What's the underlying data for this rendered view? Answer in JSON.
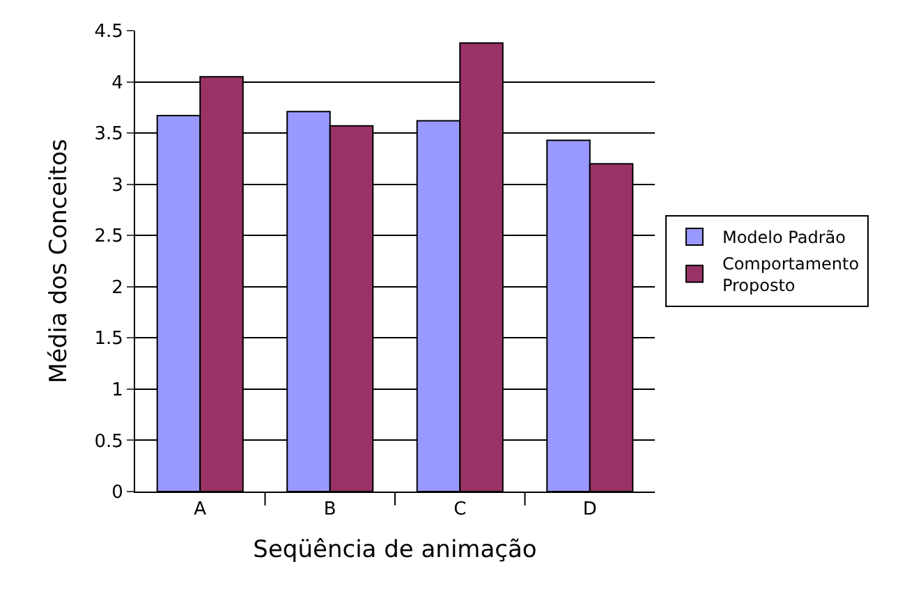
{
  "chart_data": {
    "type": "bar",
    "categories": [
      "A",
      "B",
      "C",
      "D"
    ],
    "series": [
      {
        "name": "Modelo Padrão",
        "color": "#9999ff",
        "values": [
          3.67,
          3.71,
          3.62,
          3.43
        ]
      },
      {
        "name": "Comportamento Proposto",
        "color": "#993366",
        "values": [
          4.05,
          3.57,
          4.38,
          3.2
        ]
      }
    ],
    "xlabel": "Seqüência de animação",
    "ylabel": "Média dos Conceitos",
    "ylim": [
      0,
      4.5
    ],
    "yticks": [
      0,
      0.5,
      1,
      1.5,
      2,
      2.5,
      3,
      3.5,
      4,
      4.5
    ],
    "grid": "y",
    "legend": "right"
  }
}
